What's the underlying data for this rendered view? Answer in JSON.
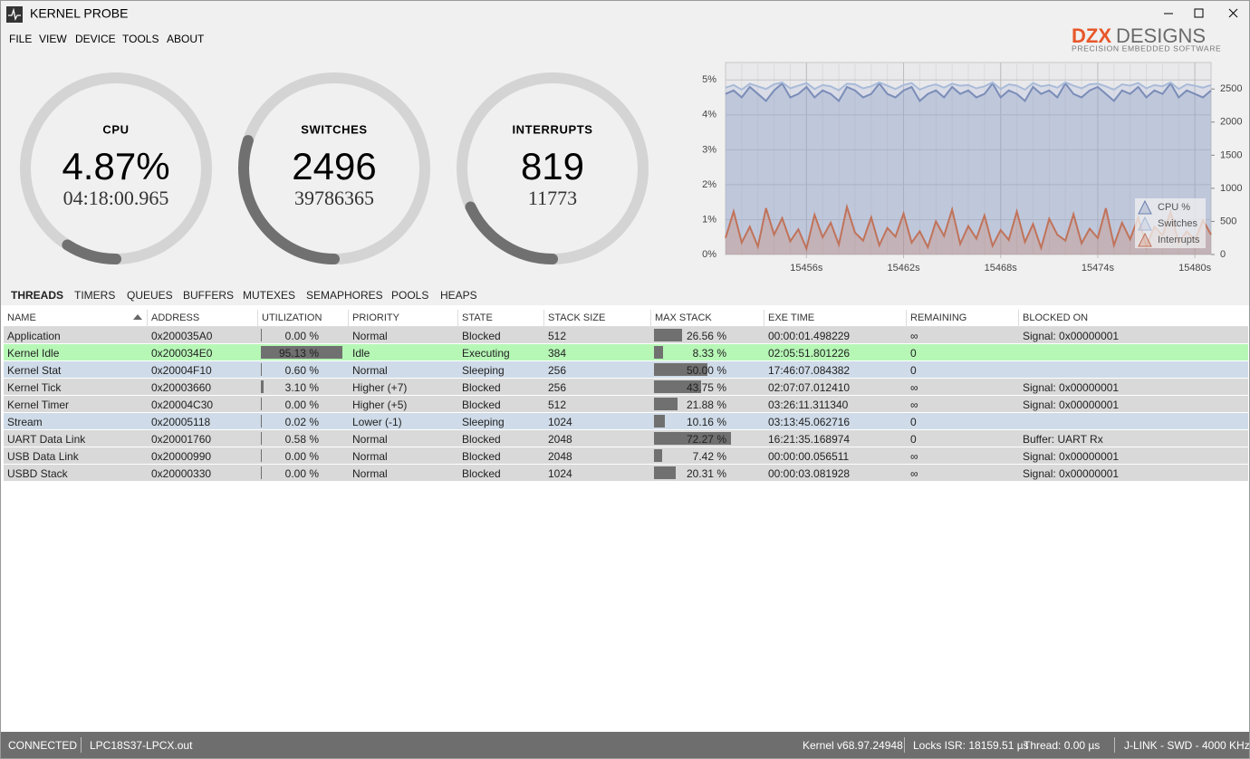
{
  "window": {
    "title": "KERNEL PROBE"
  },
  "menu": [
    "FILE",
    "VIEW",
    "DEVICE",
    "TOOLS",
    "ABOUT"
  ],
  "logo": {
    "mark": "DZX",
    "name": "DESIGNS",
    "tagline": "PRECISION EMBEDDED SOFTWARE"
  },
  "gauges": [
    {
      "label": "CPU",
      "value": "4.87%",
      "sub": "04:18:00.965",
      "fill": 0.09
    },
    {
      "label": "SWITCHES",
      "value": "2496",
      "sub": "39786365",
      "fill": 0.3
    },
    {
      "label": "INTERRUPTS",
      "value": "819",
      "sub": "11773",
      "fill": 0.18
    }
  ],
  "chart_data": {
    "type": "line",
    "x": [
      15451,
      15451.5,
      15452,
      15452.5,
      15453,
      15453.5,
      15454,
      15454.5,
      15455,
      15455.5,
      15456,
      15456.5,
      15457,
      15457.5,
      15458,
      15458.5,
      15459,
      15459.5,
      15460,
      15460.5,
      15461,
      15461.5,
      15462,
      15462.5,
      15463,
      15463.5,
      15464,
      15464.5,
      15465,
      15465.5,
      15466,
      15466.5,
      15467,
      15467.5,
      15468,
      15468.5,
      15469,
      15469.5,
      15470,
      15470.5,
      15471,
      15471.5,
      15472,
      15472.5,
      15473,
      15473.5,
      15474,
      15474.5,
      15475,
      15475.5,
      15476,
      15476.5,
      15477,
      15477.5,
      15478,
      15478.5,
      15479,
      15479.5,
      15480,
      15480.5,
      15481
    ],
    "series": [
      {
        "name": "CPU %",
        "color": "#6b7fae",
        "fill": "rgba(120,140,185,0.30)",
        "values": [
          4.6,
          4.7,
          4.5,
          4.8,
          4.6,
          4.4,
          4.7,
          4.9,
          4.5,
          4.6,
          4.8,
          4.5,
          4.7,
          4.6,
          4.4,
          4.8,
          4.7,
          4.5,
          4.6,
          4.9,
          4.6,
          4.5,
          4.7,
          4.8,
          4.4,
          4.6,
          4.7,
          4.5,
          4.8,
          4.6,
          4.7,
          4.5,
          4.6,
          4.9,
          4.5,
          4.7,
          4.6,
          4.4,
          4.8,
          4.6,
          4.7,
          4.5,
          4.9,
          4.6,
          4.5,
          4.7,
          4.8,
          4.6,
          4.4,
          4.7,
          4.6,
          4.8,
          4.5,
          4.7,
          4.6,
          4.9,
          4.5,
          4.7,
          4.6,
          4.5,
          4.7
        ]
      },
      {
        "name": "Switches",
        "color": "#a9bbd8",
        "fill": "rgba(170,185,215,0.25)",
        "axis": "y2",
        "values": [
          2520,
          2560,
          2490,
          2580,
          2540,
          2500,
          2570,
          2600,
          2510,
          2550,
          2590,
          2500,
          2560,
          2540,
          2480,
          2580,
          2570,
          2510,
          2540,
          2600,
          2550,
          2500,
          2560,
          2590,
          2490,
          2540,
          2570,
          2520,
          2580,
          2550,
          2560,
          2510,
          2540,
          2600,
          2500,
          2570,
          2550,
          2490,
          2590,
          2540,
          2560,
          2520,
          2600,
          2550,
          2510,
          2570,
          2580,
          2540,
          2490,
          2570,
          2550,
          2590,
          2510,
          2560,
          2540,
          2600,
          2500,
          2570,
          2550,
          2520,
          2560
        ]
      },
      {
        "name": "Interrupts",
        "color": "#c0735a",
        "fill": "rgba(205,130,100,0.30)",
        "axis": "y2",
        "values": [
          250,
          650,
          180,
          420,
          120,
          700,
          300,
          550,
          200,
          380,
          90,
          600,
          260,
          480,
          150,
          720,
          330,
          210,
          560,
          140,
          400,
          270,
          620,
          180,
          350,
          110,
          500,
          280,
          680,
          160,
          430,
          240,
          590,
          130,
          370,
          220,
          650,
          190,
          460,
          100,
          540,
          300,
          210,
          610,
          170,
          390,
          250,
          700,
          140,
          480,
          230,
          560,
          120,
          420,
          290,
          640,
          180,
          350,
          210,
          520,
          300
        ]
      }
    ],
    "xlim": [
      15451,
      15481
    ],
    "xticks": [
      {
        "value": 15456,
        "label": "15456s"
      },
      {
        "value": 15462,
        "label": "15462s"
      },
      {
        "value": 15468,
        "label": "15468s"
      },
      {
        "value": 15474,
        "label": "15474s"
      },
      {
        "value": 15480,
        "label": "15480s"
      }
    ],
    "ylim": [
      0,
      5.5
    ],
    "yticks": [
      {
        "value": 0,
        "label": "0%"
      },
      {
        "value": 1,
        "label": "1%"
      },
      {
        "value": 2,
        "label": "2%"
      },
      {
        "value": 3,
        "label": "3%"
      },
      {
        "value": 4,
        "label": "4%"
      },
      {
        "value": 5,
        "label": "5%"
      }
    ],
    "y2lim": [
      0,
      2900
    ],
    "y2ticks": [
      0,
      500,
      1000,
      1500,
      2000,
      2500
    ],
    "grid": true,
    "legend": "lower-right"
  },
  "tabs": [
    "THREADS",
    "TIMERS",
    "QUEUES",
    "BUFFERS",
    "MUTEXES",
    "SEMAPHORES",
    "POOLS",
    "HEAPS"
  ],
  "table": {
    "columns": [
      "NAME",
      "ADDRESS",
      "UTILIZATION",
      "PRIORITY",
      "STATE",
      "STACK SIZE",
      "MAX STACK",
      "EXE TIME",
      "REMAINING",
      "BLOCKED ON"
    ],
    "rows": [
      {
        "color": "#d9d9d9",
        "name": "Application",
        "address": "0x200035A0",
        "utilization": {
          "value": 0.0,
          "label": "0.00 %"
        },
        "priority": "Normal",
        "state": "Blocked",
        "stack_size": 512,
        "max_stack": {
          "value": 26.56,
          "label": "26.56 %"
        },
        "exe_time": "00:00:01.498229",
        "remaining": "∞",
        "blocked_on": "Signal: 0x00000001"
      },
      {
        "color": "#b6f7b6",
        "name": "Kernel Idle",
        "address": "0x200034E0",
        "utilization": {
          "value": 95.13,
          "label": "95.13 %"
        },
        "priority": "Idle",
        "state": "Executing",
        "stack_size": 384,
        "max_stack": {
          "value": 8.33,
          "label": "8.33 %"
        },
        "exe_time": "02:05:51.801226",
        "remaining": 0,
        "blocked_on": null
      },
      {
        "color": "#cfdbe8",
        "name": "Kernel Stat",
        "address": "0x20004F10",
        "utilization": {
          "value": 0.6,
          "label": "0.60 %"
        },
        "priority": "Normal",
        "state": "Sleeping",
        "stack_size": 256,
        "max_stack": {
          "value": 50.0,
          "label": "50.00 %"
        },
        "exe_time": "17:46:07.084382",
        "remaining": 0,
        "blocked_on": null
      },
      {
        "color": "#d9d9d9",
        "name": "Kernel Tick",
        "address": "0x20003660",
        "utilization": {
          "value": 3.1,
          "label": "3.10 %"
        },
        "priority": "Higher (+7)",
        "state": "Blocked",
        "stack_size": 256,
        "max_stack": {
          "value": 43.75,
          "label": "43.75 %"
        },
        "exe_time": "02:07:07.012410",
        "remaining": "∞",
        "blocked_on": "Signal: 0x00000001"
      },
      {
        "color": "#d9d9d9",
        "name": "Kernel Timer",
        "address": "0x20004C30",
        "utilization": {
          "value": 0.0,
          "label": "0.00 %"
        },
        "priority": "Higher (+5)",
        "state": "Blocked",
        "stack_size": 512,
        "max_stack": {
          "value": 21.88,
          "label": "21.88 %"
        },
        "exe_time": "03:26:11.311340",
        "remaining": "∞",
        "blocked_on": "Signal: 0x00000001"
      },
      {
        "color": "#cfdbe8",
        "name": "Stream",
        "address": "0x20005118",
        "utilization": {
          "value": 0.02,
          "label": "0.02 %"
        },
        "priority": "Lower (-1)",
        "state": "Sleeping",
        "stack_size": 1024,
        "max_stack": {
          "value": 10.16,
          "label": "10.16 %"
        },
        "exe_time": "03:13:45.062716",
        "remaining": 0,
        "blocked_on": null
      },
      {
        "color": "#d9d9d9",
        "name": "UART Data Link",
        "address": "0x20001760",
        "utilization": {
          "value": 0.58,
          "label": "0.58 %"
        },
        "priority": "Normal",
        "state": "Blocked",
        "stack_size": 2048,
        "max_stack": {
          "value": 72.27,
          "label": "72.27 %"
        },
        "exe_time": "16:21:35.168974",
        "remaining": 0,
        "blocked_on": "Buffer: UART Rx"
      },
      {
        "color": "#d9d9d9",
        "name": "USB Data Link",
        "address": "0x20000990",
        "utilization": {
          "value": 0.0,
          "label": "0.00 %"
        },
        "priority": "Normal",
        "state": "Blocked",
        "stack_size": 2048,
        "max_stack": {
          "value": 7.42,
          "label": "7.42 %"
        },
        "exe_time": "00:00:00.056511",
        "remaining": "∞",
        "blocked_on": "Signal: 0x00000001"
      },
      {
        "color": "#d9d9d9",
        "name": "USBD Stack",
        "address": "0x20000330",
        "utilization": {
          "value": 0.0,
          "label": "0.00 %"
        },
        "priority": "Normal",
        "state": "Blocked",
        "stack_size": 1024,
        "max_stack": {
          "value": 20.31,
          "label": "20.31 %"
        },
        "exe_time": "00:00:03.081928",
        "remaining": "∞",
        "blocked_on": "Signal: 0x00000001"
      }
    ]
  },
  "status": {
    "connection": "CONNECTED",
    "file": "LPC18S37-LPCX.out",
    "kernel": "Kernel v68.97.24948",
    "locks_isr": "Locks ISR: 18159.51 µs",
    "locks_thread": "Thread: 0.00 µs",
    "link": "J-LINK - SWD - 4000 KHz"
  }
}
